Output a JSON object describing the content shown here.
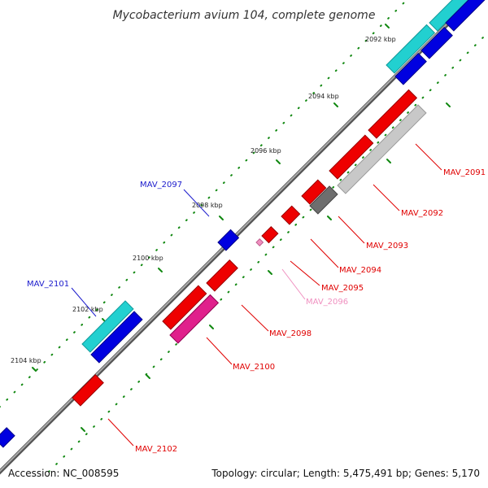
{
  "header": {
    "title": "Mycobacterium avium 104, complete genome"
  },
  "footer": {
    "accession": "Accession: NC_008595",
    "summary": "Topology: circular; Length: 5,475,491 bp; Genes: 5,170"
  },
  "colors": {
    "red_gene": "#ee0000",
    "blue_gene": "#0000e0",
    "cyan_gene": "#22d0d0",
    "magenta_gene": "#e0208c",
    "gray_gene": "#c8c8c8",
    "dark_gray_gene": "#6e6e6e",
    "pink_gene": "#f090c0",
    "backbone": "#8a8a8a",
    "tick": "#118811"
  },
  "kbp_labels": [
    "2092 kbp",
    "2094 kbp",
    "2096 kbp",
    "2098 kbp",
    "2100 kbp",
    "2102 kbp",
    "2104 kbp"
  ],
  "gene_labels": {
    "mav_2091": "MAV_2091",
    "mav_2092": "MAV_2092",
    "mav_2093": "MAV_2093",
    "mav_2094": "MAV_2094",
    "mav_2095": "MAV_2095",
    "mav_2096": "MAV_2096",
    "mav_2097": "MAV_2097",
    "mav_2098": "MAV_2098",
    "mav_2100": "MAV_2100",
    "mav_2101": "MAV_2101",
    "mav_2102": "MAV_2102"
  }
}
